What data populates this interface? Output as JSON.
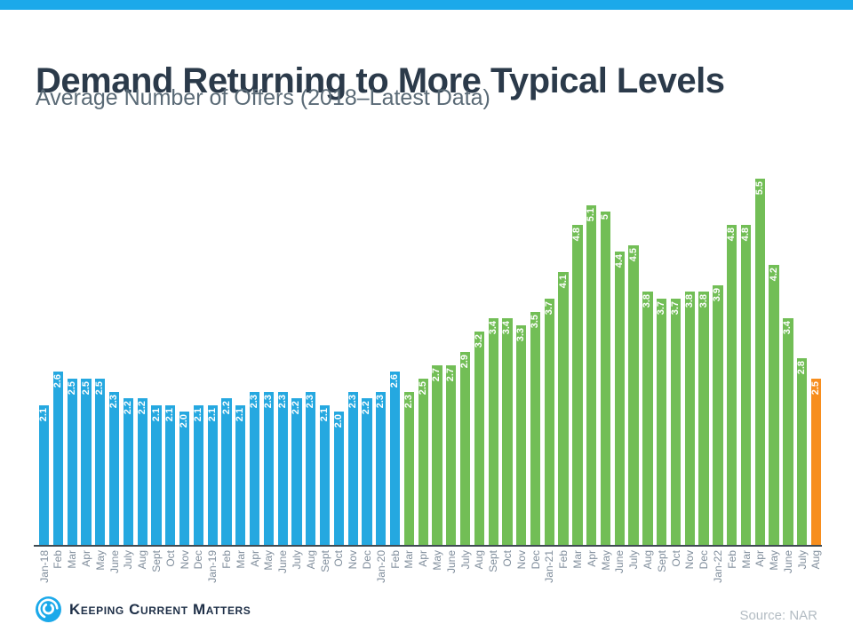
{
  "header": {
    "title": "Demand Returning to More Typical Levels",
    "subtitle": "Average Number of Offers (2018–Latest Data)"
  },
  "footer": {
    "brand": "Keeping Current Matters",
    "source": "Source: NAR"
  },
  "colors": {
    "accent": "#1ba9ea",
    "bar_blue": "#25a8e0",
    "bar_green": "#72be56",
    "bar_orange": "#f78e1e",
    "axis_line": "#3f4a52",
    "axis_label": "#808e9c",
    "title_text": "#2b3a4a",
    "subtitle_text": "#5a6a76",
    "value_label_text": "#ffffff",
    "source_text": "#b3bcc3",
    "brand_text": "#1e2f47"
  },
  "chart_data": {
    "type": "bar",
    "title": "Demand Returning to More Typical Levels",
    "subtitle": "Average Number of Offers (2018–Latest Data)",
    "xlabel": "",
    "ylabel": "",
    "ylim": [
      0,
      5.5
    ],
    "grid": false,
    "legend": "none",
    "value_labels_style": "white bold, rotated 90deg, inside top of bar",
    "x_labels_style": "rotated 90deg, anchored at axis",
    "categories": [
      "Jan-18",
      "Feb",
      "Mar",
      "Apr",
      "May",
      "June",
      "July",
      "Aug",
      "Sept",
      "Oct",
      "Nov",
      "Dec",
      "Jan-19",
      "Feb",
      "Mar",
      "Apr",
      "May",
      "June",
      "July",
      "Aug",
      "Sept",
      "Oct",
      "Nov",
      "Dec",
      "Jan-20",
      "Feb",
      "Mar",
      "Apr",
      "May",
      "June",
      "July",
      "Aug",
      "Sept",
      "Oct",
      "Nov",
      "Dec",
      "Jan-21",
      "Feb",
      "Mar",
      "Apr",
      "May",
      "June",
      "July",
      "Aug",
      "Sept",
      "Oct",
      "Nov",
      "Dec",
      "Jan-22",
      "Feb",
      "Mar",
      "Apr",
      "May",
      "June",
      "July",
      "Aug"
    ],
    "values": [
      2.1,
      2.6,
      2.5,
      2.5,
      2.5,
      2.3,
      2.2,
      2.2,
      2.1,
      2.1,
      2.0,
      2.1,
      2.1,
      2.2,
      2.1,
      2.3,
      2.3,
      2.3,
      2.2,
      2.3,
      2.1,
      2.0,
      2.3,
      2.2,
      2.3,
      2.6,
      2.3,
      2.5,
      2.7,
      2.7,
      2.9,
      3.2,
      3.4,
      3.4,
      3.3,
      3.5,
      3.7,
      4.1,
      4.8,
      5.1,
      5,
      4.4,
      4.5,
      3.8,
      3.7,
      3.7,
      3.8,
      3.8,
      3.9,
      4.8,
      4.8,
      5.5,
      4.2,
      3.4,
      2.8,
      2.5
    ],
    "value_labels": [
      "2.1",
      "2.6",
      "2.5",
      "2.5",
      "2.5",
      "2.3",
      "2.2",
      "2.2",
      "2.1",
      "2.1",
      "2.0",
      "2.1",
      "2.1",
      "2.2",
      "2.1",
      "2.3",
      "2.3",
      "2.3",
      "2.2",
      "2.3",
      "2.1",
      "2.0",
      "2.3",
      "2.2",
      "2.3",
      "2.6",
      "2.3",
      "2.5",
      "2.7",
      "2.7",
      "2.9",
      "3.2",
      "3.4",
      "3.4",
      "3.3",
      "3.5",
      "3.7",
      "4.1",
      "4.8",
      "5.1",
      "5",
      "4.4",
      "4.5",
      "3.8",
      "3.7",
      "3.7",
      "3.8",
      "3.8",
      "3.9",
      "4.8",
      "4.8",
      "5.5",
      "4.2",
      "3.4",
      "2.8",
      "2.5"
    ],
    "bar_colors": [
      "blue",
      "blue",
      "blue",
      "blue",
      "blue",
      "blue",
      "blue",
      "blue",
      "blue",
      "blue",
      "blue",
      "blue",
      "blue",
      "blue",
      "blue",
      "blue",
      "blue",
      "blue",
      "blue",
      "blue",
      "blue",
      "blue",
      "blue",
      "blue",
      "blue",
      "blue",
      "green",
      "green",
      "green",
      "green",
      "green",
      "green",
      "green",
      "green",
      "green",
      "green",
      "green",
      "green",
      "green",
      "green",
      "green",
      "green",
      "green",
      "green",
      "green",
      "green",
      "green",
      "green",
      "green",
      "green",
      "green",
      "green",
      "green",
      "green",
      "green",
      "orange"
    ],
    "segments": [
      {
        "color": "blue",
        "range": "Jan-18 to Feb-20"
      },
      {
        "color": "green",
        "range": "Mar-20 to July-22"
      },
      {
        "color": "orange",
        "range": "Aug-22 (latest)"
      }
    ]
  }
}
